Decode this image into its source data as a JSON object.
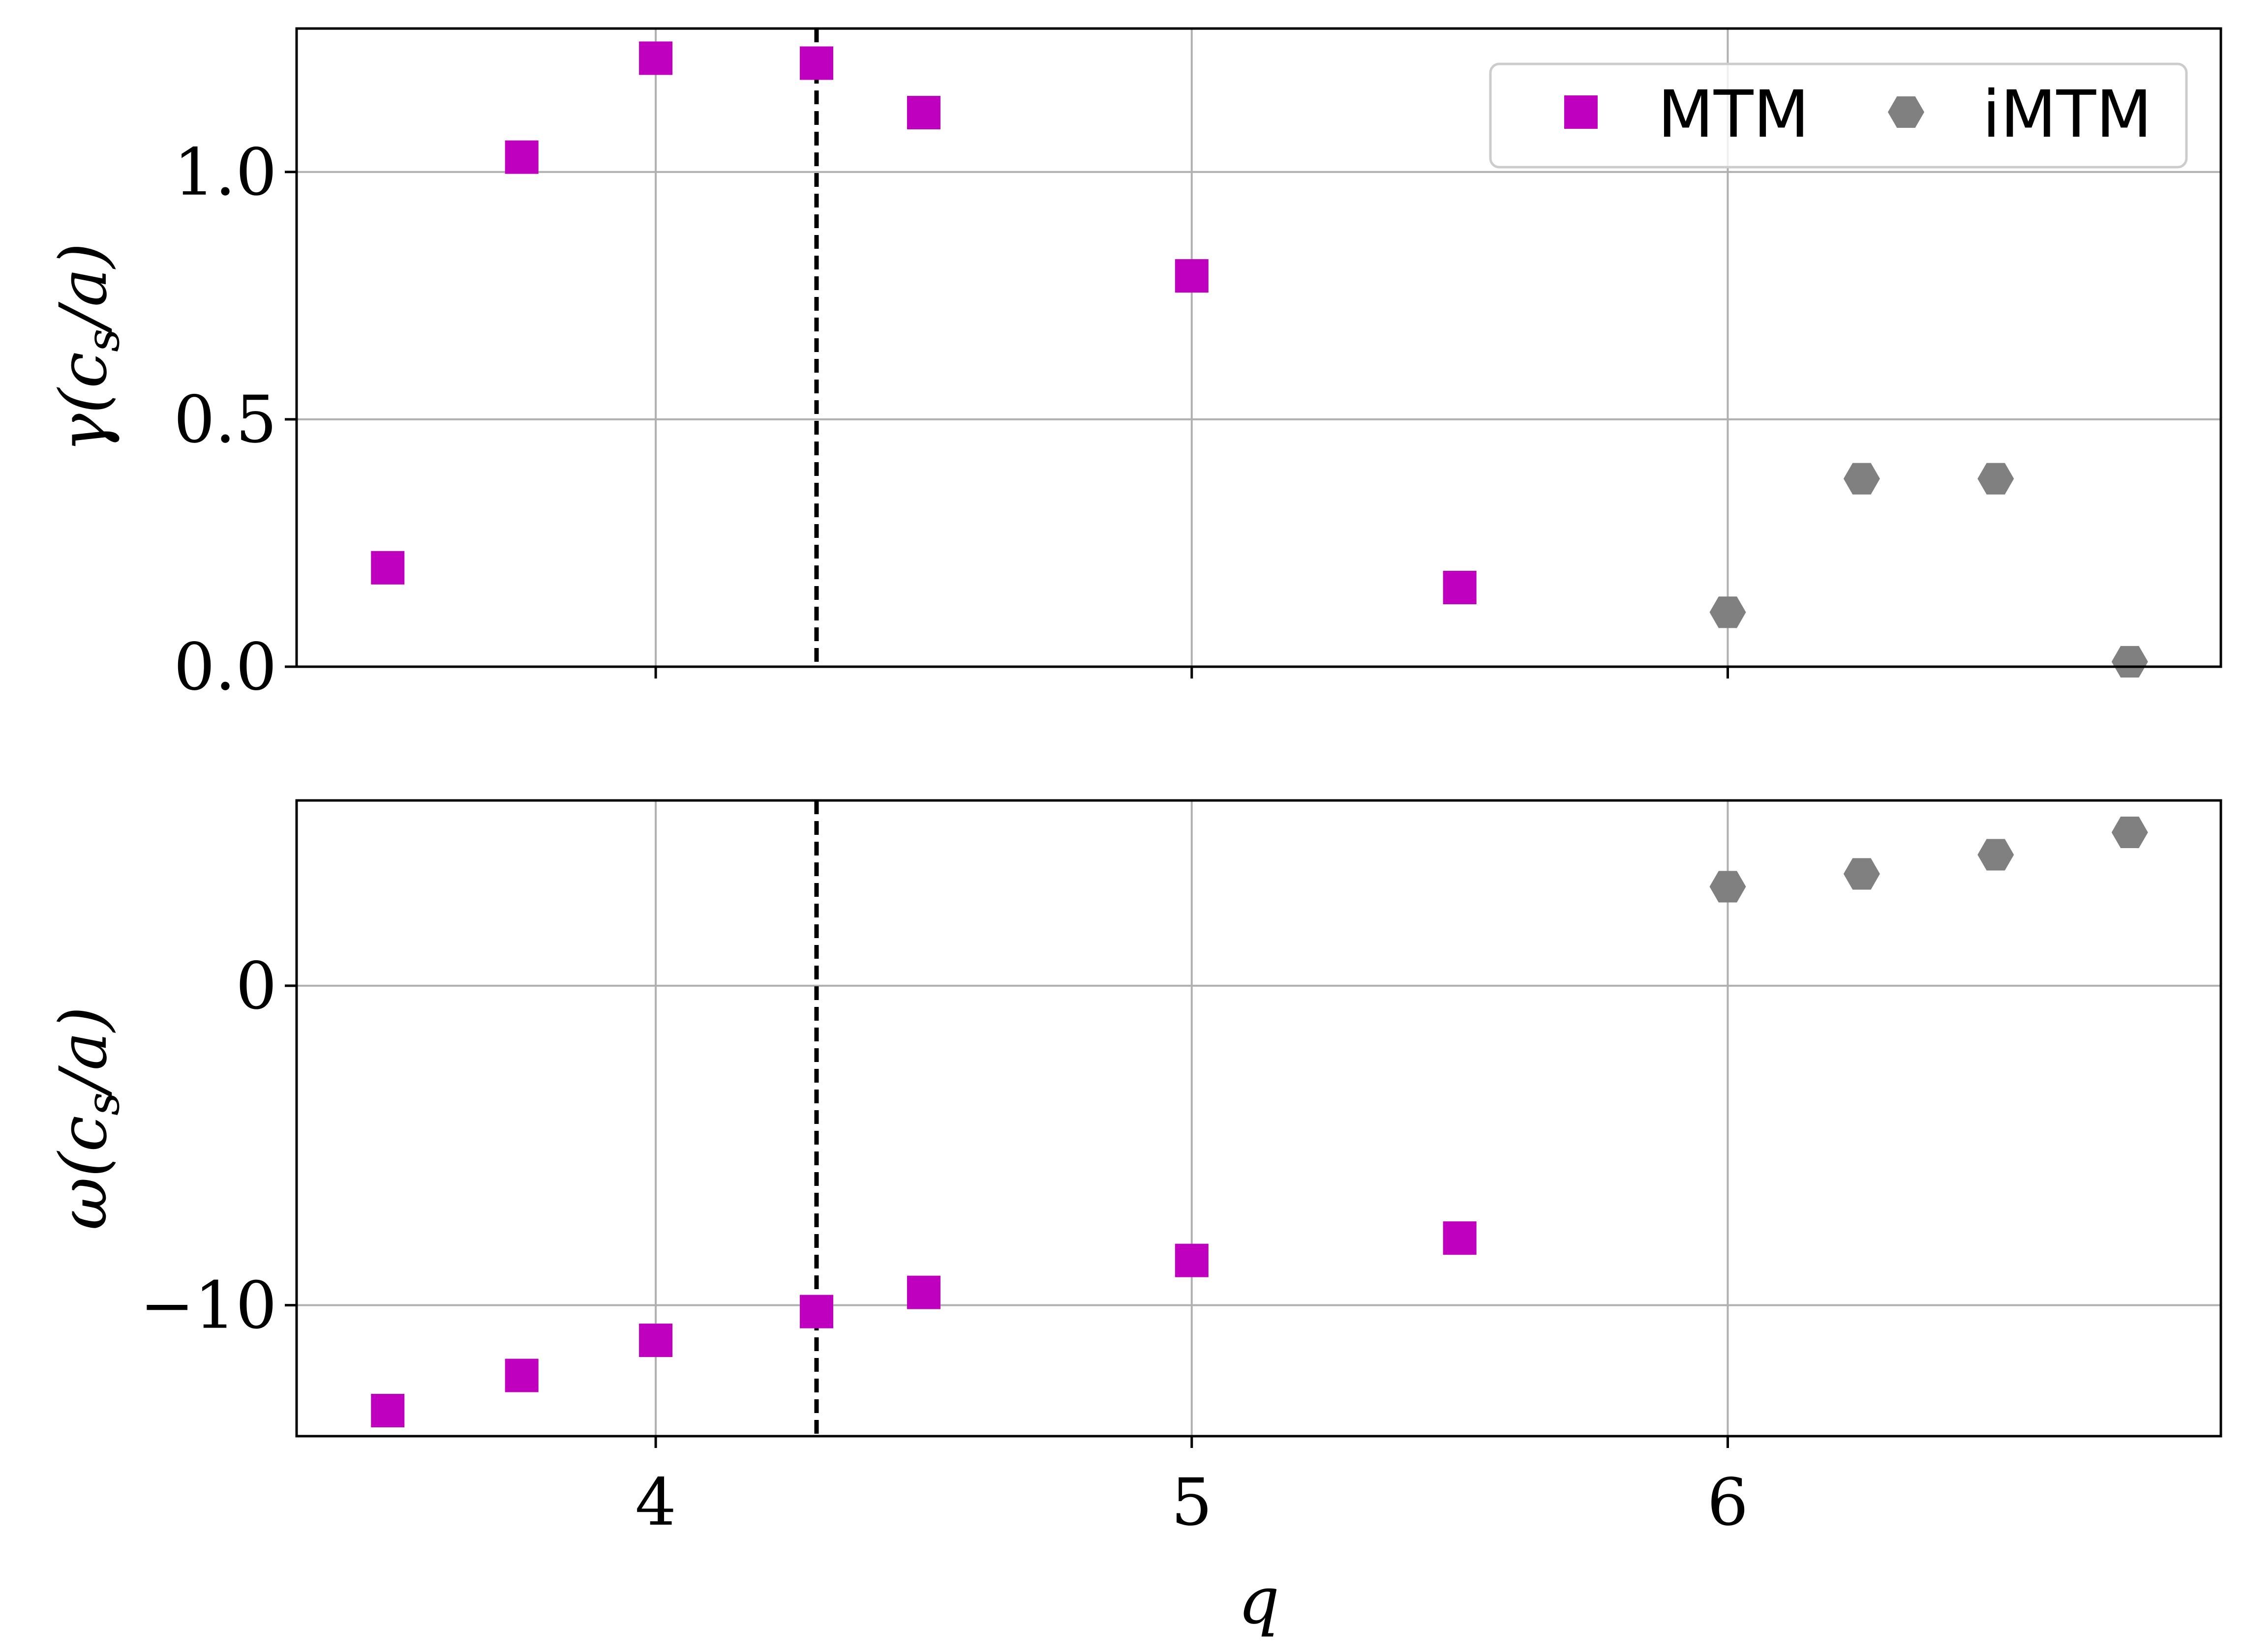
{
  "chart_data": [
    {
      "type": "scatter",
      "xlim": [
        3.33,
        6.92
      ],
      "ylim": [
        0,
        1.29
      ],
      "ylabel_parts": {
        "lead": "γ(c",
        "sub": "s",
        "tail": "/a)"
      },
      "yticks": [
        0.0,
        0.5,
        1.0
      ],
      "ytick_labels": [
        "0.0",
        "0.5",
        "1.0"
      ],
      "xticks": [
        4,
        5,
        6
      ],
      "xtick_labels_visible": false,
      "grid": true,
      "vline_x": 4.3,
      "legend": {
        "placement": "top-right",
        "entries": [
          {
            "label": "MTM"
          },
          {
            "label": "iMTM"
          }
        ]
      },
      "series": [
        {
          "name": "MTM",
          "marker": "square",
          "color": "#bf00bf",
          "x": [
            3.5,
            3.75,
            4.0,
            4.3,
            4.5,
            5.0,
            5.5
          ],
          "y": [
            0.2,
            1.03,
            1.23,
            1.22,
            1.12,
            0.79,
            0.16
          ]
        },
        {
          "name": "iMTM",
          "marker": "hexagon",
          "color": "#808080",
          "x": [
            6.0,
            6.25,
            6.5,
            6.75
          ],
          "y": [
            0.11,
            0.38,
            0.38,
            0.01
          ]
        }
      ]
    },
    {
      "type": "scatter",
      "xlim": [
        3.33,
        6.92
      ],
      "ylim": [
        -14.1,
        5.8
      ],
      "ylabel_parts": {
        "lead": "ω(c",
        "sub": "s",
        "tail": "/a)"
      },
      "yticks": [
        -10,
        0
      ],
      "ytick_labels": [
        "−10",
        "0"
      ],
      "xticks": [
        4,
        5,
        6
      ],
      "xtick_labels": [
        "4",
        "5",
        "6"
      ],
      "xlabel": "q",
      "grid": true,
      "vline_x": 4.3,
      "series": [
        {
          "name": "MTM",
          "marker": "square",
          "color": "#bf00bf",
          "x": [
            3.5,
            3.75,
            4.0,
            4.3,
            4.5,
            5.0,
            5.5
          ],
          "y": [
            -13.3,
            -12.2,
            -11.1,
            -10.2,
            -9.6,
            -8.6,
            -7.9
          ]
        },
        {
          "name": "iMTM",
          "marker": "hexagon",
          "color": "#808080",
          "x": [
            6.0,
            6.25,
            6.5,
            6.75
          ],
          "y": [
            3.1,
            3.5,
            4.1,
            4.8
          ]
        }
      ]
    }
  ]
}
